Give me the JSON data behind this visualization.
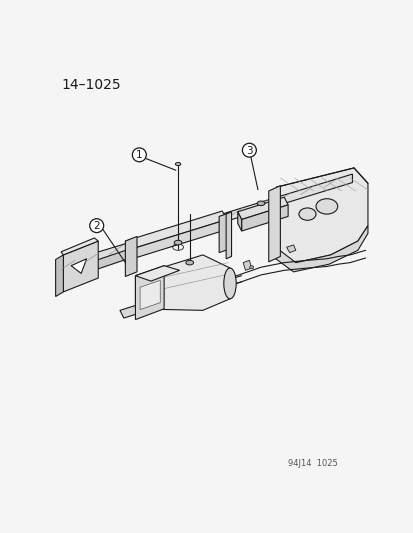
{
  "title_text": "14–1025",
  "footnote": "94J14  1025",
  "bg_color": "#f5f5f5",
  "line_color": "#1a1a1a",
  "gray_light": "#e8e8e8",
  "gray_mid": "#d0d0d0",
  "gray_dark": "#b8b8b8",
  "figsize": [
    4.14,
    5.33
  ],
  "dpi": 100
}
